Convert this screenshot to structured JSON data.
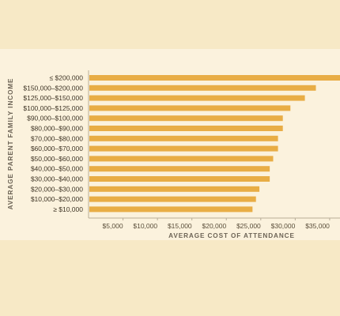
{
  "chart_data": {
    "type": "bar",
    "orientation": "horizontal",
    "categories": [
      "≤ $200,000",
      "$150,000–$200,000",
      "$125,000–$150,000",
      "$100,000–$125,000",
      "$90,000–$100,000",
      "$80,000–$90,000",
      "$70,000–$80,000",
      "$60,000–$70,000",
      "$50,000–$60,000",
      "$40,000–$50,000",
      "$30,000–$40,000",
      "$20,000–$30,000",
      "$10,000–$20,000",
      "≥ $10,000"
    ],
    "values": [
      36500,
      33000,
      31400,
      29300,
      28200,
      28200,
      27500,
      27500,
      26800,
      26300,
      26300,
      24800,
      24300,
      23800
    ],
    "xlabel": "AVERAGE COST OF ATTENDANCE",
    "ylabel": "AVERAGE PARENT FAMILY INCOME",
    "xticks": [
      5000,
      10000,
      15000,
      20000,
      25000,
      30000,
      35000
    ],
    "xtick_labels": [
      "$5,000",
      "$10,000",
      "$15,000",
      "$20,000",
      "$25,000",
      "$30,000",
      "$35,000"
    ],
    "xlim": [
      0,
      36500
    ],
    "grid": false,
    "legend": "none",
    "colors": {
      "bar": "#e8ad45",
      "axis": "#b8ad98",
      "page_background": "#f7e9c6",
      "panel_background": "#fbf2dd"
    }
  }
}
